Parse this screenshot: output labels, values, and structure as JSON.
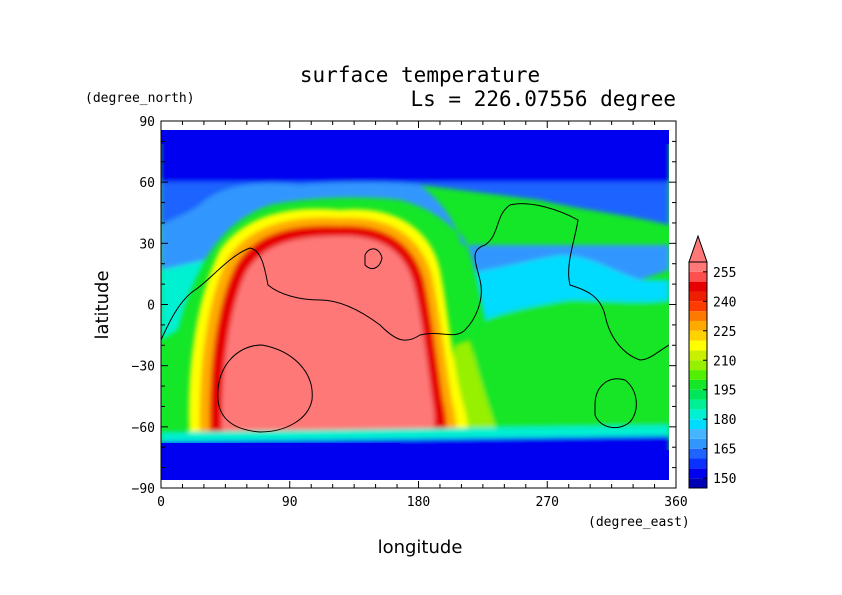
{
  "chart_data": {
    "type": "heatmap",
    "title": "surface temperature",
    "subtitle": "Ls = 226.07556 degree",
    "xlabel": "longitude",
    "ylabel": "latitude",
    "x_unit": "(degree_east)",
    "y_unit": "(degree_north)",
    "xlim": [
      0,
      360
    ],
    "ylim": [
      -90,
      90
    ],
    "x_ticks": [
      "0",
      "90",
      "180",
      "270",
      "360"
    ],
    "y_ticks": [
      "90",
      "60",
      "30",
      "0",
      "−30",
      "−60",
      "−90"
    ],
    "colorbar": {
      "levels": [
        145,
        150,
        155,
        160,
        165,
        170,
        175,
        180,
        185,
        190,
        195,
        200,
        205,
        210,
        215,
        220,
        225,
        230,
        235,
        240,
        245,
        250,
        255,
        260
      ],
      "tick_labels": [
        "150",
        "165",
        "180",
        "195",
        "210",
        "225",
        "240",
        "255"
      ],
      "tick_values": [
        150,
        165,
        180,
        195,
        210,
        225,
        240,
        255
      ],
      "colors": [
        "#0000b4",
        "#0000f0",
        "#0a32ff",
        "#1e64ff",
        "#3296ff",
        "#46b4ff",
        "#00dcff",
        "#00f0d2",
        "#00f096",
        "#00e65a",
        "#14e628",
        "#50f000",
        "#96f000",
        "#c8f000",
        "#ffff00",
        "#ffd200",
        "#ffaa00",
        "#ff7800",
        "#ff3c00",
        "#f01e00",
        "#e60000",
        "#ff5050",
        "#ff7878"
      ],
      "extend": "max"
    },
    "grid": false
  }
}
